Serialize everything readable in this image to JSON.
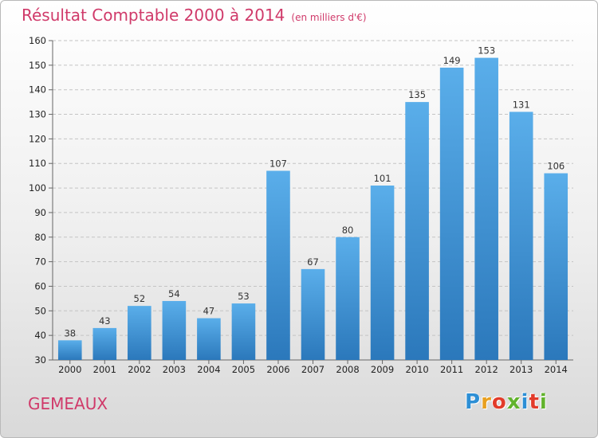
{
  "chart_data": {
    "type": "bar",
    "title": "Résultat Comptable 2000 à 2014",
    "subtitle": "(en milliers d'€)",
    "categories": [
      "2000",
      "2001",
      "2002",
      "2003",
      "2004",
      "2005",
      "2006",
      "2007",
      "2008",
      "2009",
      "2010",
      "2011",
      "2012",
      "2013",
      "2014"
    ],
    "values": [
      38,
      43,
      52,
      54,
      47,
      53,
      107,
      67,
      80,
      101,
      135,
      149,
      153,
      131,
      106
    ],
    "ylim": [
      30,
      160
    ],
    "yticks": [
      30,
      40,
      50,
      60,
      70,
      80,
      90,
      100,
      110,
      120,
      130,
      140,
      150,
      160
    ],
    "xlabel": "",
    "ylabel": "",
    "grid": true,
    "bar_color": "#3f94d8"
  },
  "footer": {
    "place_name": "GEMEAUX",
    "logo_text": "Proxiti",
    "logo_colors": [
      "#2d8fd5",
      "#e8a020",
      "#e23b2a",
      "#62b32d",
      "#2d8fd5",
      "#e23b2a",
      "#62b32d"
    ]
  }
}
